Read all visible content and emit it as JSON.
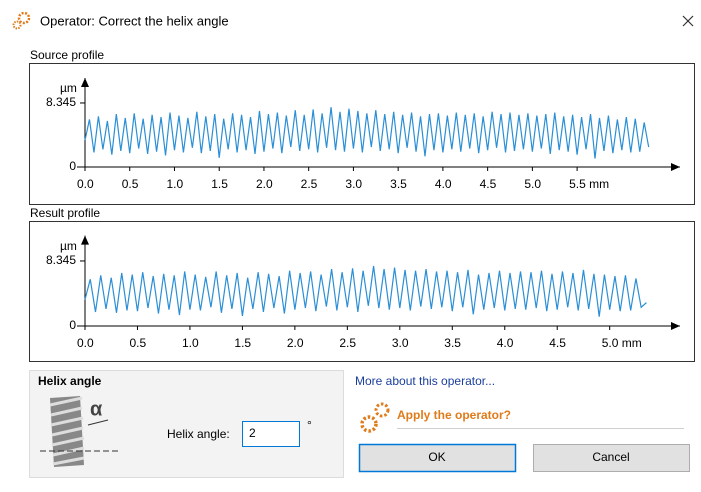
{
  "window": {
    "title": "Operator: Correct the helix angle"
  },
  "chart_data": [
    {
      "type": "line",
      "title": "Source profile",
      "y_label": "µm",
      "color": "#2b8fd6",
      "xlim": [
        0,
        6.65
      ],
      "ylim": [
        0,
        11.6
      ],
      "xticks": [
        {
          "value": 0,
          "label": "0.0"
        },
        0.5,
        {
          "value": 1,
          "label": "1.0"
        },
        1.5,
        {
          "value": 2,
          "label": "2.0"
        },
        2.5,
        {
          "value": 3,
          "label": "3.0"
        },
        3.5,
        {
          "value": 4,
          "label": "4.0"
        },
        4.5,
        {
          "value": 5,
          "label": "5.0"
        },
        {
          "value": 5.5,
          "label": "5.5 mm"
        }
      ],
      "yticks": [
        0,
        8.345
      ],
      "x": [
        0,
        0.05,
        0.1,
        0.15,
        0.2,
        0.25,
        0.3,
        0.35,
        0.4,
        0.45,
        0.5,
        0.55,
        0.6,
        0.65,
        0.7,
        0.75,
        0.8,
        0.85,
        0.9,
        0.95,
        1,
        1.05,
        1.1,
        1.15,
        1.2,
        1.25,
        1.3,
        1.35,
        1.4,
        1.45,
        1.5,
        1.55,
        1.6,
        1.65,
        1.7,
        1.75,
        1.8,
        1.85,
        1.9,
        1.95,
        2,
        2.05,
        2.1,
        2.15,
        2.2,
        2.25,
        2.3,
        2.35,
        2.4,
        2.45,
        2.5,
        2.55,
        2.6,
        2.65,
        2.7,
        2.75,
        2.8,
        2.85,
        2.9,
        2.95,
        3,
        3.05,
        3.1,
        3.15,
        3.2,
        3.25,
        3.3,
        3.35,
        3.4,
        3.45,
        3.5,
        3.55,
        3.6,
        3.65,
        3.7,
        3.75,
        3.8,
        3.85,
        3.9,
        3.95,
        4,
        4.05,
        4.1,
        4.15,
        4.2,
        4.25,
        4.3,
        4.35,
        4.4,
        4.45,
        4.5,
        4.55,
        4.6,
        4.65,
        4.7,
        4.75,
        4.8,
        4.85,
        4.9,
        4.95,
        5,
        5.05,
        5.1,
        5.15,
        5.2,
        5.25,
        5.3,
        5.35,
        5.4,
        5.45,
        5.5,
        5.55,
        5.6,
        5.65,
        5.7,
        5.75,
        5.8,
        5.85,
        5.9,
        5.95,
        6,
        6.05,
        6.1,
        6.15,
        6.2,
        6.25,
        6.3
      ],
      "values": [
        3.5,
        6.2,
        1.9,
        6.6,
        2.3,
        6.0,
        1.6,
        6.9,
        2.1,
        6.4,
        1.8,
        7.0,
        2.4,
        6.3,
        1.7,
        6.8,
        2.0,
        6.5,
        1.5,
        7.1,
        2.2,
        6.7,
        1.9,
        6.4,
        2.5,
        7.2,
        1.8,
        6.6,
        2.1,
        6.9,
        1.2,
        6.3,
        2.3,
        7.0,
        1.9,
        6.8,
        2.2,
        6.5,
        1.7,
        7.3,
        2.0,
        6.9,
        2.4,
        7.1,
        1.8,
        6.7,
        2.6,
        7.4,
        2.1,
        6.8,
        2.3,
        7.5,
        1.9,
        7.0,
        2.5,
        7.8,
        2.2,
        7.2,
        2.0,
        7.6,
        2.4,
        7.3,
        1.9,
        7.0,
        2.6,
        7.4,
        2.1,
        6.9,
        2.3,
        7.2,
        1.8,
        6.8,
        2.5,
        7.1,
        2.0,
        6.6,
        1.4,
        6.9,
        2.2,
        7.0,
        1.9,
        6.7,
        2.3,
        7.1,
        2.0,
        6.8,
        2.4,
        7.0,
        1.8,
        6.6,
        2.2,
        7.2,
        2.5,
        6.9,
        1.9,
        7.1,
        2.1,
        6.8,
        2.3,
        7.0,
        2.0,
        6.7,
        2.4,
        6.9,
        1.7,
        7.1,
        2.2,
        6.6,
        2.0,
        6.8,
        1.6,
        6.5,
        2.3,
        6.9,
        1.1,
        6.4,
        2.1,
        6.7,
        1.8,
        6.2,
        2.2,
        6.5,
        1.9,
        6.3,
        2.0,
        5.8,
        2.6
      ]
    },
    {
      "type": "line",
      "title": "Result profile",
      "y_label": "µm",
      "color": "#2b8fd6",
      "xlim": [
        0,
        5.67
      ],
      "ylim": [
        0,
        11.6
      ],
      "xticks": [
        {
          "value": 0,
          "label": "0.0"
        },
        0.5,
        {
          "value": 1,
          "label": "1.0"
        },
        1.5,
        {
          "value": 2,
          "label": "2.0"
        },
        2.5,
        {
          "value": 3,
          "label": "3.0"
        },
        3.5,
        {
          "value": 4,
          "label": "4.0"
        },
        4.5,
        {
          "value": 5,
          "label": "5.0 mm"
        }
      ],
      "yticks": [
        0,
        8.345
      ],
      "x": [
        0,
        0.05,
        0.1,
        0.15,
        0.2,
        0.25,
        0.3,
        0.35,
        0.4,
        0.45,
        0.5,
        0.55,
        0.6,
        0.65,
        0.7,
        0.75,
        0.8,
        0.85,
        0.9,
        0.95,
        1,
        1.05,
        1.1,
        1.15,
        1.2,
        1.25,
        1.3,
        1.35,
        1.4,
        1.45,
        1.5,
        1.55,
        1.6,
        1.65,
        1.7,
        1.75,
        1.8,
        1.85,
        1.9,
        1.95,
        2,
        2.05,
        2.1,
        2.15,
        2.2,
        2.25,
        2.3,
        2.35,
        2.4,
        2.45,
        2.5,
        2.55,
        2.6,
        2.65,
        2.7,
        2.75,
        2.8,
        2.85,
        2.9,
        2.95,
        3,
        3.05,
        3.1,
        3.15,
        3.2,
        3.25,
        3.3,
        3.35,
        3.4,
        3.45,
        3.5,
        3.55,
        3.6,
        3.65,
        3.7,
        3.75,
        3.8,
        3.85,
        3.9,
        3.95,
        4,
        4.05,
        4.1,
        4.15,
        4.2,
        4.25,
        4.3,
        4.35,
        4.4,
        4.45,
        4.5,
        4.55,
        4.6,
        4.65,
        4.7,
        4.75,
        4.8,
        4.85,
        4.9,
        4.95,
        5,
        5.05,
        5.1,
        5.15,
        5.2,
        5.25,
        5.3,
        5.35
      ],
      "values": [
        3.4,
        6.0,
        1.8,
        6.5,
        2.2,
        6.2,
        1.7,
        6.8,
        2.0,
        6.6,
        1.9,
        6.9,
        2.3,
        6.4,
        1.6,
        6.7,
        2.1,
        6.5,
        1.4,
        7.0,
        2.1,
        6.6,
        2.0,
        6.3,
        2.4,
        7.0,
        1.7,
        6.5,
        2.2,
        6.8,
        1.3,
        6.2,
        2.2,
        6.9,
        1.8,
        6.7,
        2.3,
        6.4,
        1.6,
        7.1,
        2.1,
        6.8,
        2.3,
        7.0,
        1.9,
        6.6,
        2.5,
        7.3,
        2.0,
        6.9,
        2.4,
        7.4,
        1.8,
        7.1,
        2.6,
        7.7,
        2.3,
        7.3,
        2.1,
        7.5,
        2.3,
        7.2,
        2.0,
        7.1,
        2.5,
        7.3,
        2.2,
        7.0,
        2.4,
        7.1,
        1.9,
        6.9,
        2.4,
        7.2,
        1.5,
        6.6,
        2.1,
        6.8,
        2.3,
        7.1,
        2.0,
        6.8,
        2.2,
        7.0,
        2.1,
        6.9,
        2.3,
        7.1,
        1.9,
        6.7,
        2.1,
        7.0,
        2.4,
        6.8,
        2.0,
        7.2,
        2.2,
        6.7,
        1.2,
        6.6,
        2.1,
        6.4,
        1.9,
        6.5,
        2.0,
        6.1,
        2.4,
        3.0
      ]
    }
  ],
  "helix_group": {
    "title": "Helix angle",
    "icon_label": "α",
    "field_label": "Helix angle:",
    "value": 2,
    "unit": "°"
  },
  "link": "More about this operator...",
  "apply_prompt": "Apply the operator?",
  "buttons": [
    "OK",
    "Cancel"
  ]
}
